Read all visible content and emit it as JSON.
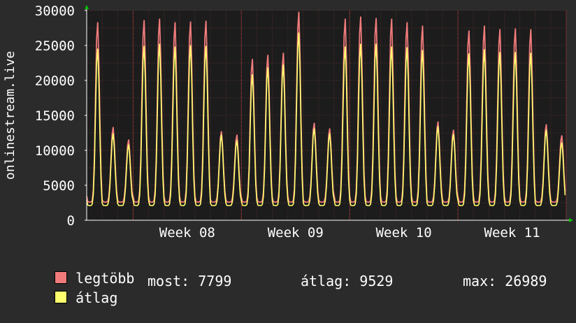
{
  "chart_data": {
    "type": "line",
    "ylabel": "onlinestream.live",
    "ylim": [
      0,
      30000
    ],
    "yticks": [
      0,
      5000,
      10000,
      15000,
      20000,
      25000,
      30000
    ],
    "xtick_labels": [
      "Week 08",
      "Week 09",
      "Week 10",
      "Week 11"
    ],
    "days": 31,
    "daily_peaks": {
      "legtobb": [
        28500,
        13400,
        11600,
        28800,
        29000,
        28500,
        28600,
        28700,
        12800,
        12300,
        23200,
        23800,
        24100,
        30000,
        14000,
        13200,
        29000,
        29300,
        29100,
        29000,
        28500,
        28000,
        14200,
        13000,
        27300,
        28000,
        27500,
        27600,
        27500,
        13800,
        12200
      ],
      "atlag": [
        24700,
        12500,
        10900,
        25100,
        25400,
        25000,
        25200,
        25100,
        12300,
        11500,
        21000,
        22000,
        22400,
        27000,
        13200,
        12500,
        25000,
        25400,
        25400,
        25000,
        24900,
        24500,
        13500,
        12400,
        24000,
        24600,
        24200,
        24200,
        24100,
        13000,
        11200
      ]
    },
    "series": [
      {
        "name": "legtöbb",
        "color": "#f07b7b"
      },
      {
        "name": "átlag",
        "color": "#ffff6e"
      }
    ],
    "grid": true
  },
  "legend": {
    "max_label": "legtöbb",
    "avg_label": "átlag",
    "most": "most: 7799",
    "atlag": "átlag: 9529",
    "max": "max: 26989"
  },
  "colors": {
    "background": "#2b2b2b",
    "plot": "#1c1c1c",
    "grid": "#5a2f2f",
    "axis": "#ffffff",
    "week_line": "#c04040",
    "arrow": "#00c000"
  }
}
